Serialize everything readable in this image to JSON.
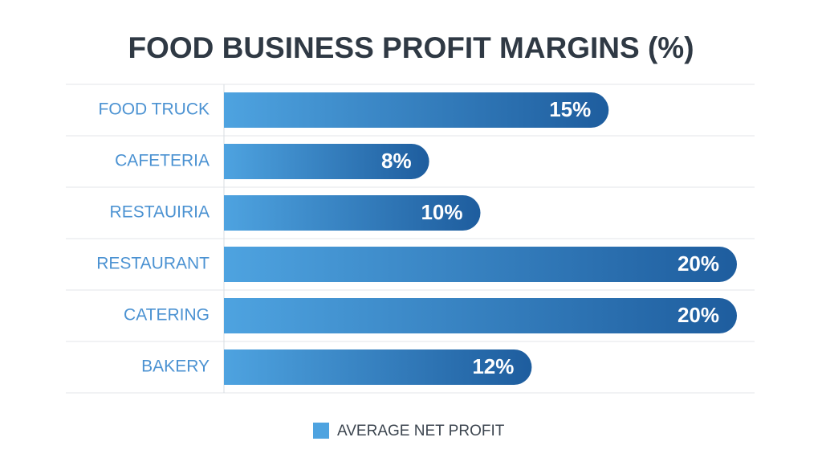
{
  "chart_data": {
    "type": "bar",
    "orientation": "horizontal",
    "title": "FOOD BUSINESS PROFIT MARGINS (%)",
    "categories": [
      "FOOD TRUCK",
      "CAFETERIA",
      "RESTAUIRIA",
      "RESTAURANT",
      "CATERING",
      "BAKERY"
    ],
    "series": [
      {
        "name": "AVERAGE NET PROFIT",
        "color": "#4ea3e0",
        "values": [
          15,
          8,
          10,
          20,
          20,
          12
        ],
        "value_labels": [
          "15%",
          "8%",
          "10%",
          "20%",
          "20%",
          "12%"
        ]
      }
    ],
    "grid": true,
    "legend": "bottom"
  }
}
